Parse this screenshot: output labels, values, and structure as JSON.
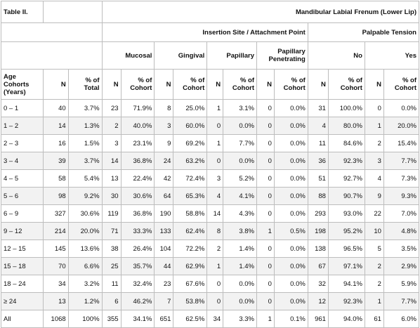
{
  "table": {
    "title": "Table II.",
    "group_main": "Mandibular Labial Frenum (Lower Lip)",
    "group_insertion": "Insertion Site / Attachment Point",
    "group_tension": "Palpable Tension",
    "categories": {
      "mucosal": "Mucosal",
      "gingival": "Gingival",
      "papillary": "Papillary",
      "papillary_penetrating": "Papillary Penetrating",
      "no": "No",
      "yes": "Yes"
    },
    "col_headers": {
      "age": "Age Cohorts (Years)",
      "n": "N",
      "pct_total": "% of Total",
      "pct_cohort": "% of Cohort"
    },
    "rows": [
      {
        "age": "0 – 1",
        "n": "40",
        "pct_total": "3.7%",
        "muc_n": "23",
        "muc_p": "71.9%",
        "gin_n": "8",
        "gin_p": "25.0%",
        "pap_n": "1",
        "pap_p": "3.1%",
        "pp_n": "0",
        "pp_p": "0.0%",
        "no_n": "31",
        "no_p": "100.0%",
        "yes_n": "0",
        "yes_p": "0.0%"
      },
      {
        "age": "1 – 2",
        "n": "14",
        "pct_total": "1.3%",
        "muc_n": "2",
        "muc_p": "40.0%",
        "gin_n": "3",
        "gin_p": "60.0%",
        "pap_n": "0",
        "pap_p": "0.0%",
        "pp_n": "0",
        "pp_p": "0.0%",
        "no_n": "4",
        "no_p": "80.0%",
        "yes_n": "1",
        "yes_p": "20.0%"
      },
      {
        "age": "2 – 3",
        "n": "16",
        "pct_total": "1.5%",
        "muc_n": "3",
        "muc_p": "23.1%",
        "gin_n": "9",
        "gin_p": "69.2%",
        "pap_n": "1",
        "pap_p": "7.7%",
        "pp_n": "0",
        "pp_p": "0.0%",
        "no_n": "11",
        "no_p": "84.6%",
        "yes_n": "2",
        "yes_p": "15.4%"
      },
      {
        "age": "3 – 4",
        "n": "39",
        "pct_total": "3.7%",
        "muc_n": "14",
        "muc_p": "36.8%",
        "gin_n": "24",
        "gin_p": "63.2%",
        "pap_n": "0",
        "pap_p": "0.0%",
        "pp_n": "0",
        "pp_p": "0.0%",
        "no_n": "36",
        "no_p": "92.3%",
        "yes_n": "3",
        "yes_p": "7.7%"
      },
      {
        "age": "4 – 5",
        "n": "58",
        "pct_total": "5.4%",
        "muc_n": "13",
        "muc_p": "22.4%",
        "gin_n": "42",
        "gin_p": "72.4%",
        "pap_n": "3",
        "pap_p": "5.2%",
        "pp_n": "0",
        "pp_p": "0.0%",
        "no_n": "51",
        "no_p": "92.7%",
        "yes_n": "4",
        "yes_p": "7.3%"
      },
      {
        "age": "5 – 6",
        "n": "98",
        "pct_total": "9.2%",
        "muc_n": "30",
        "muc_p": "30.6%",
        "gin_n": "64",
        "gin_p": "65.3%",
        "pap_n": "4",
        "pap_p": "4.1%",
        "pp_n": "0",
        "pp_p": "0.0%",
        "no_n": "88",
        "no_p": "90.7%",
        "yes_n": "9",
        "yes_p": "9.3%"
      },
      {
        "age": "6 – 9",
        "n": "327",
        "pct_total": "30.6%",
        "muc_n": "119",
        "muc_p": "36.8%",
        "gin_n": "190",
        "gin_p": "58.8%",
        "pap_n": "14",
        "pap_p": "4.3%",
        "pp_n": "0",
        "pp_p": "0.0%",
        "no_n": "293",
        "no_p": "93.0%",
        "yes_n": "22",
        "yes_p": "7.0%"
      },
      {
        "age": "9 – 12",
        "n": "214",
        "pct_total": "20.0%",
        "muc_n": "71",
        "muc_p": "33.3%",
        "gin_n": "133",
        "gin_p": "62.4%",
        "pap_n": "8",
        "pap_p": "3.8%",
        "pp_n": "1",
        "pp_p": "0.5%",
        "no_n": "198",
        "no_p": "95.2%",
        "yes_n": "10",
        "yes_p": "4.8%"
      },
      {
        "age": "12 – 15",
        "n": "145",
        "pct_total": "13.6%",
        "muc_n": "38",
        "muc_p": "26.4%",
        "gin_n": "104",
        "gin_p": "72.2%",
        "pap_n": "2",
        "pap_p": "1.4%",
        "pp_n": "0",
        "pp_p": "0.0%",
        "no_n": "138",
        "no_p": "96.5%",
        "yes_n": "5",
        "yes_p": "3.5%"
      },
      {
        "age": "15 – 18",
        "n": "70",
        "pct_total": "6.6%",
        "muc_n": "25",
        "muc_p": "35.7%",
        "gin_n": "44",
        "gin_p": "62.9%",
        "pap_n": "1",
        "pap_p": "1.4%",
        "pp_n": "0",
        "pp_p": "0.0%",
        "no_n": "67",
        "no_p": "97.1%",
        "yes_n": "2",
        "yes_p": "2.9%"
      },
      {
        "age": "18 – 24",
        "n": "34",
        "pct_total": "3.2%",
        "muc_n": "11",
        "muc_p": "32.4%",
        "gin_n": "23",
        "gin_p": "67.6%",
        "pap_n": "0",
        "pap_p": "0.0%",
        "pp_n": "0",
        "pp_p": "0.0%",
        "no_n": "32",
        "no_p": "94.1%",
        "yes_n": "2",
        "yes_p": "5.9%"
      },
      {
        "age": "≥ 24",
        "n": "13",
        "pct_total": "1.2%",
        "muc_n": "6",
        "muc_p": "46.2%",
        "gin_n": "7",
        "gin_p": "53.8%",
        "pap_n": "0",
        "pap_p": "0.0%",
        "pp_n": "0",
        "pp_p": "0.0%",
        "no_n": "12",
        "no_p": "92.3%",
        "yes_n": "1",
        "yes_p": "7.7%"
      },
      {
        "age": "All",
        "n": "1068",
        "pct_total": "100%",
        "muc_n": "355",
        "muc_p": "34.1%",
        "gin_n": "651",
        "gin_p": "62.5%",
        "pap_n": "34",
        "pap_p": "3.3%",
        "pp_n": "1",
        "pp_p": "0.1%",
        "no_n": "961",
        "no_p": "94.0%",
        "yes_n": "61",
        "yes_p": "6.0%"
      }
    ]
  }
}
